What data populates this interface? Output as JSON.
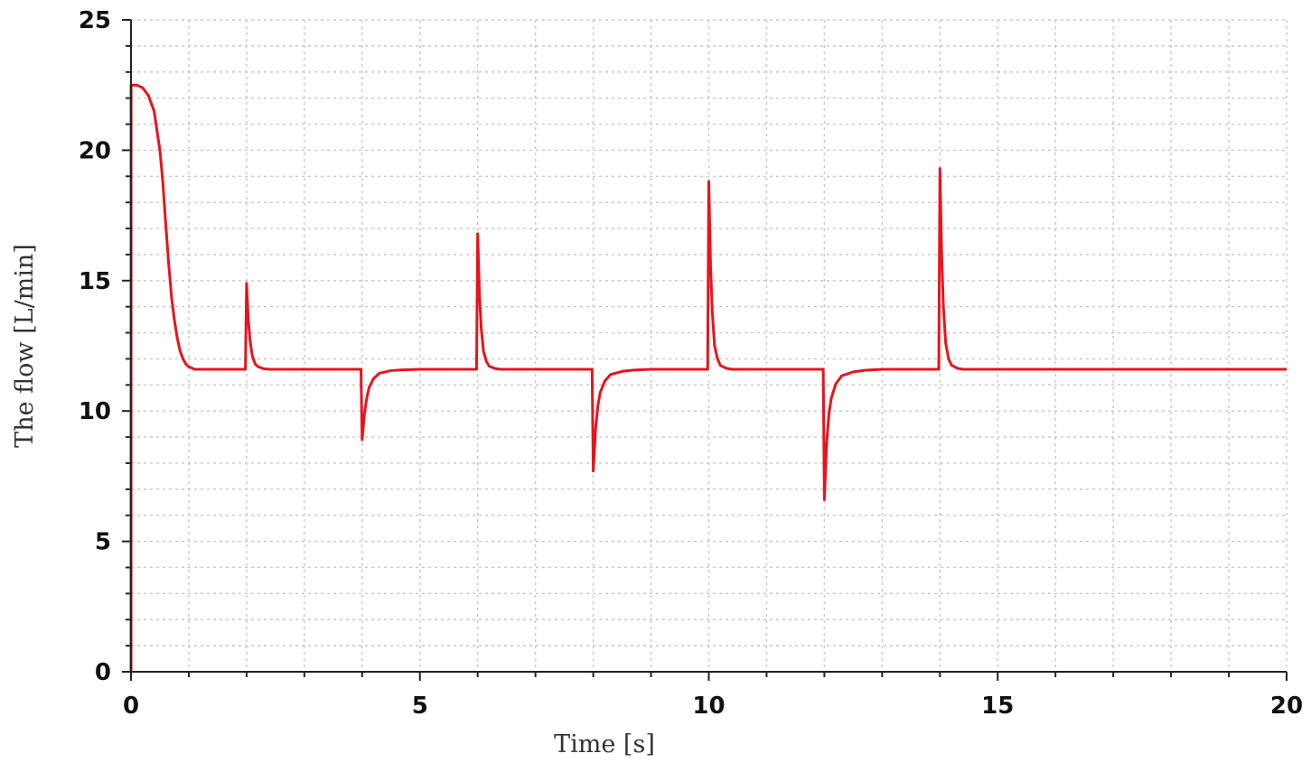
{
  "chart_data": {
    "type": "line",
    "title": "",
    "xlabel": "Time [s]",
    "ylabel": "The flow  [L/min]",
    "xlim": [
      0,
      20
    ],
    "ylim": [
      0,
      25
    ],
    "xticks": [
      0,
      5,
      10,
      15,
      20
    ],
    "yticks": [
      0,
      5,
      10,
      15,
      20,
      25
    ],
    "x_minor_step": 1,
    "y_minor_step": 1,
    "grid": true,
    "legend": "none",
    "series": [
      {
        "color": "#e8141b",
        "x": [
          0,
          0.001,
          0.1,
          0.2,
          0.3,
          0.4,
          0.5,
          0.55,
          0.6,
          0.65,
          0.7,
          0.75,
          0.8,
          0.85,
          0.9,
          0.95,
          1.0,
          1.05,
          1.1,
          1.2,
          1.3,
          1.5,
          1.98,
          2.0,
          2.03,
          2.06,
          2.1,
          2.15,
          2.2,
          2.3,
          2.4,
          2.6,
          3.98,
          4.0,
          4.04,
          4.08,
          4.12,
          4.2,
          4.3,
          4.5,
          4.7,
          5.0,
          5.98,
          6.0,
          6.03,
          6.06,
          6.1,
          6.15,
          6.2,
          6.3,
          6.4,
          6.6,
          7.98,
          8.0,
          8.04,
          8.08,
          8.12,
          8.2,
          8.3,
          8.5,
          8.7,
          9.0,
          9.98,
          10.0,
          10.03,
          10.06,
          10.1,
          10.15,
          10.2,
          10.3,
          10.4,
          10.6,
          11.98,
          12.0,
          12.04,
          12.08,
          12.12,
          12.2,
          12.3,
          12.5,
          12.7,
          13.0,
          13.98,
          14.0,
          14.03,
          14.06,
          14.1,
          14.15,
          14.2,
          14.3,
          14.4,
          14.6,
          20.0
        ],
        "y": [
          0,
          22.5,
          22.5,
          22.4,
          22.1,
          21.5,
          20.0,
          18.8,
          17.2,
          15.7,
          14.4,
          13.5,
          12.8,
          12.3,
          12.0,
          11.8,
          11.7,
          11.65,
          11.6,
          11.6,
          11.6,
          11.6,
          11.6,
          14.9,
          13.5,
          12.7,
          12.1,
          11.8,
          11.7,
          11.62,
          11.6,
          11.6,
          11.6,
          8.9,
          9.9,
          10.5,
          10.9,
          11.25,
          11.45,
          11.55,
          11.58,
          11.6,
          11.6,
          16.8,
          14.5,
          13.2,
          12.3,
          11.9,
          11.72,
          11.63,
          11.6,
          11.6,
          11.6,
          7.7,
          9.3,
          10.2,
          10.7,
          11.15,
          11.4,
          11.52,
          11.57,
          11.6,
          11.6,
          18.8,
          15.6,
          13.8,
          12.5,
          12.0,
          11.75,
          11.64,
          11.6,
          11.6,
          11.6,
          6.6,
          8.8,
          9.9,
          10.5,
          11.05,
          11.35,
          11.5,
          11.56,
          11.6,
          11.6,
          19.3,
          16.0,
          14.0,
          12.6,
          12.0,
          11.76,
          11.64,
          11.6,
          11.6,
          11.6
        ]
      }
    ]
  }
}
